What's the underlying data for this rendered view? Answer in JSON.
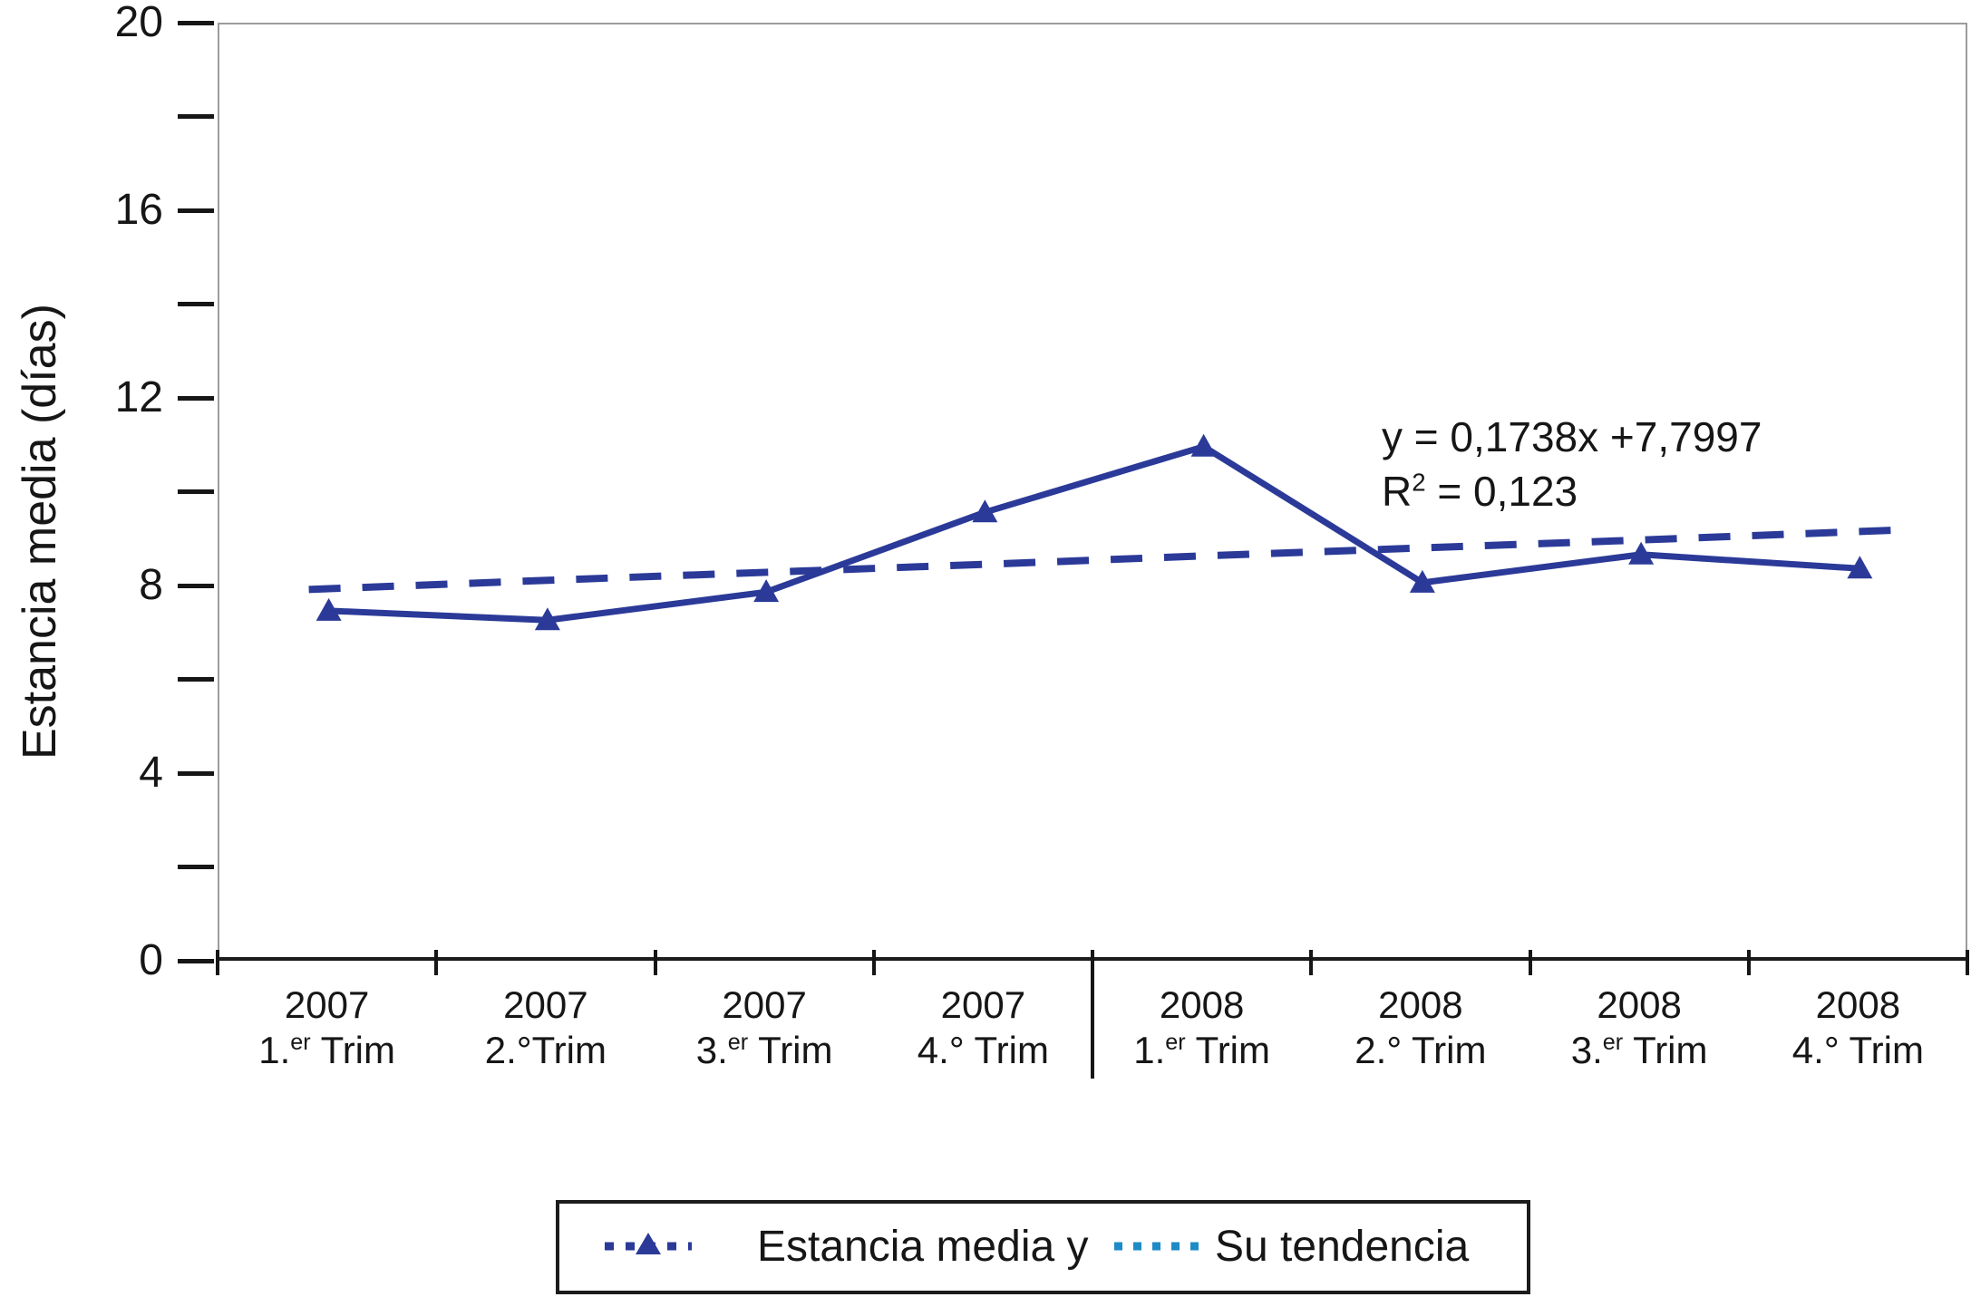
{
  "colors": {
    "series_navy": "#2b3a98",
    "tendencia_cyan": "#1e8bc6",
    "axis_gray": "#9c9c9c",
    "ink": "#161616"
  },
  "chart_data": {
    "type": "line",
    "title": "",
    "ylabel": "Estancia media (días)",
    "xlabel": "",
    "ylim": [
      0,
      20
    ],
    "ytick_labels": [
      0,
      4,
      8,
      12,
      16,
      20
    ],
    "ytick_minor_step": 2,
    "grid": false,
    "legend_position": "bottom",
    "categories": [
      {
        "year": "2007",
        "trim": [
          {
            "t": "1."
          },
          {
            "t": "er",
            "sup": true
          },
          {
            "t": " Trim"
          }
        ]
      },
      {
        "year": "2007",
        "trim": [
          {
            "t": "2.°Trim"
          }
        ]
      },
      {
        "year": "2007",
        "trim": [
          {
            "t": "3."
          },
          {
            "t": "er",
            "sup": true
          },
          {
            "t": " Trim"
          }
        ]
      },
      {
        "year": "2007",
        "trim": [
          {
            "t": "4.° Trim"
          }
        ]
      },
      {
        "year": "2008",
        "trim": [
          {
            "t": "1."
          },
          {
            "t": "er",
            "sup": true
          },
          {
            "t": " Trim"
          }
        ]
      },
      {
        "year": "2008",
        "trim": [
          {
            "t": "2.° Trim"
          }
        ]
      },
      {
        "year": "2008",
        "trim": [
          {
            "t": "3."
          },
          {
            "t": "er",
            "sup": true
          },
          {
            "t": " Trim"
          }
        ]
      },
      {
        "year": "2008",
        "trim": [
          {
            "t": "4.° Trim"
          }
        ]
      }
    ],
    "series": [
      {
        "name": "Estancia media y",
        "style": "solid",
        "marker": "triangle",
        "values": [
          7.5,
          7.3,
          7.9,
          9.6,
          11.0,
          8.1,
          8.7,
          8.4
        ]
      },
      {
        "name": "Su tendencia",
        "style": "dashed",
        "marker": "none",
        "values": [
          7.97,
          8.15,
          8.32,
          8.49,
          8.67,
          8.84,
          9.01,
          9.19
        ]
      }
    ],
    "annotation": {
      "line1": "y = 0,1738x +7,7997",
      "r_base": "R",
      "r_sup": "2",
      "r_rest": " = 0,123"
    }
  },
  "legend": {
    "items": [
      {
        "label": "Estancia media y",
        "marker": "navy-dotted-triangle"
      },
      {
        "label": "Su tendencia",
        "marker": "cyan-dotted"
      }
    ]
  }
}
